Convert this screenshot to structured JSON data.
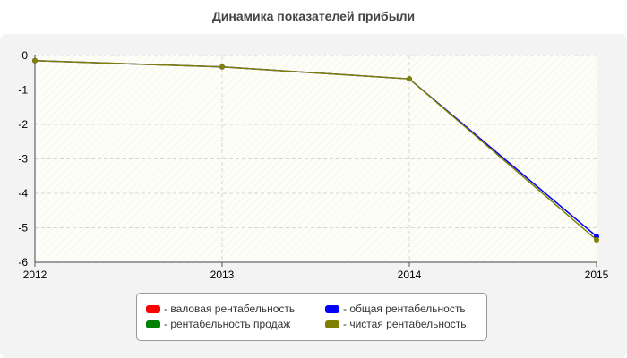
{
  "chart_data": {
    "type": "line",
    "title": "Динамика показателей прибыли",
    "xlabel": "",
    "ylabel": "",
    "categories": [
      "2012",
      "2013",
      "2014",
      "2015"
    ],
    "ylim": [
      -6,
      0
    ],
    "yticks": [
      "0",
      "-1",
      "-2",
      "-3",
      "-4",
      "-5",
      "-6"
    ],
    "ytick_values": [
      0,
      -1,
      -2,
      -3,
      -4,
      -5,
      -6
    ],
    "grid": true,
    "legend_position": "bottom",
    "series": [
      {
        "name": "валовая рентабельность",
        "color": "#ff0000",
        "values": [
          null,
          null,
          null,
          null
        ]
      },
      {
        "name": "общая рентабельность",
        "color": "#0000ff",
        "values": [
          -0.15,
          -0.33,
          -0.68,
          -5.25
        ]
      },
      {
        "name": "рентабельность продаж",
        "color": "#008000",
        "values": [
          null,
          null,
          null,
          null
        ]
      },
      {
        "name": "чистая рентабельность",
        "color": "#808000",
        "values": [
          -0.15,
          -0.33,
          -0.68,
          -5.35
        ]
      }
    ]
  }
}
